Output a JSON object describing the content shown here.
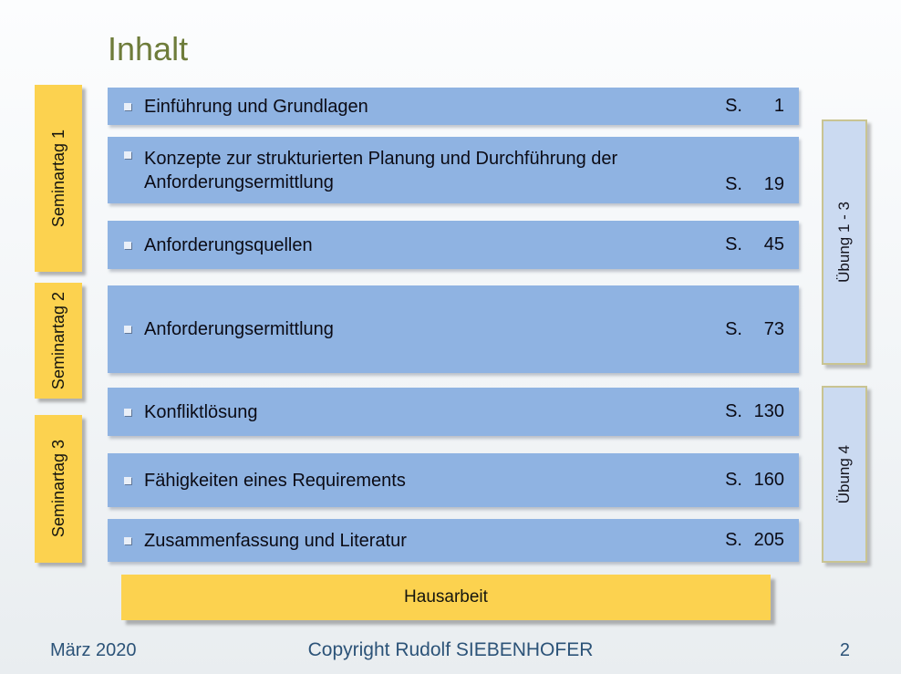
{
  "title": "Inhalt",
  "left_tabs": [
    {
      "label": "Seminartag 1"
    },
    {
      "label": "Seminartag 2"
    },
    {
      "label": "Seminartag 3"
    }
  ],
  "right_tabs": [
    {
      "label": "Übung 1 - 3"
    },
    {
      "label": "Übung 4"
    }
  ],
  "toc_items": [
    {
      "label": "Einführung und Grundlagen",
      "page_prefix": "S.",
      "page_number": "1"
    },
    {
      "label": "Konzepte zur strukturierten Planung und Durchführung der Anforderungsermittlung",
      "page_prefix": "S.",
      "page_number": "19"
    },
    {
      "label": "Anforderungsquellen",
      "page_prefix": "S.",
      "page_number": "45"
    },
    {
      "label": "Anforderungsermittlung",
      "page_prefix": "S.",
      "page_number": "73"
    },
    {
      "label": "Konfliktlösung",
      "page_prefix": "S.",
      "page_number": "130"
    },
    {
      "label": "Fähigkeiten eines Requirements",
      "page_prefix": "S.",
      "page_number": "160"
    },
    {
      "label": "Zusammenfassung und Literatur",
      "page_prefix": "S.",
      "page_number": "205"
    }
  ],
  "bottom_bar": {
    "label": "Hausarbeit"
  },
  "footer": {
    "date": "März 2020",
    "copyright": "Copyright Rudolf SIEBENHOFER",
    "page_number": "2"
  },
  "icons": {
    "bullet": "small-square"
  },
  "colors": {
    "bar_blue": "#8FB3E2",
    "tab_yellow": "#FCD24F",
    "tab_lightblue": "#CBDAF1",
    "tab_border": "#C9C492",
    "title_olive": "#6E7C3A",
    "footer_navy": "#2C5378",
    "bullet_fill": "#E9EFF8"
  }
}
